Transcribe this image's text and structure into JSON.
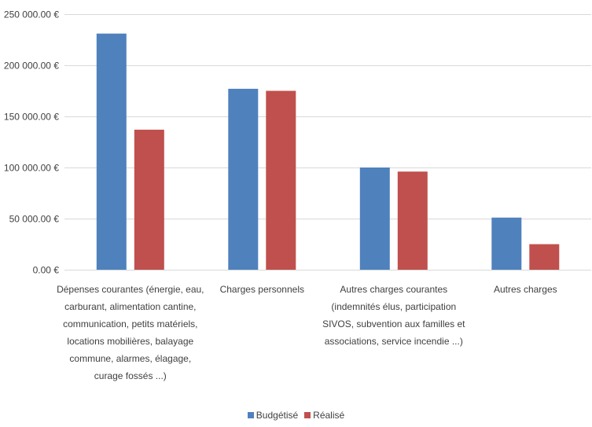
{
  "chart_data": {
    "type": "bar",
    "categories": [
      [
        "Dépenses courantes (énergie, eau,",
        "carburant, alimentation cantine,",
        "communication, petits matériels,",
        "locations mobilières, balayage",
        "commune, alarmes, élagage,",
        "curage fossés ...)"
      ],
      [
        "Charges personnels"
      ],
      [
        "Autres charges courantes",
        "(indemnités élus, participation",
        "SIVOS, subvention aux familles et",
        "associations, service incendie ...)"
      ],
      [
        "Autres charges"
      ]
    ],
    "series": [
      {
        "name": "Budgétisé",
        "color": "#4f81bd",
        "values": [
          231000,
          177000,
          100000,
          51000
        ]
      },
      {
        "name": "Réalisé",
        "color": "#c0504d",
        "values": [
          137000,
          175000,
          96000,
          25000
        ]
      }
    ],
    "ylim": [
      0,
      250000
    ],
    "yticks": [
      "0.00 €",
      "50 000.00 €",
      "100 000.00 €",
      "150 000.00 €",
      "200 000.00 €",
      "250 000.00 €"
    ],
    "grid": true,
    "legend_position": "bottom"
  }
}
